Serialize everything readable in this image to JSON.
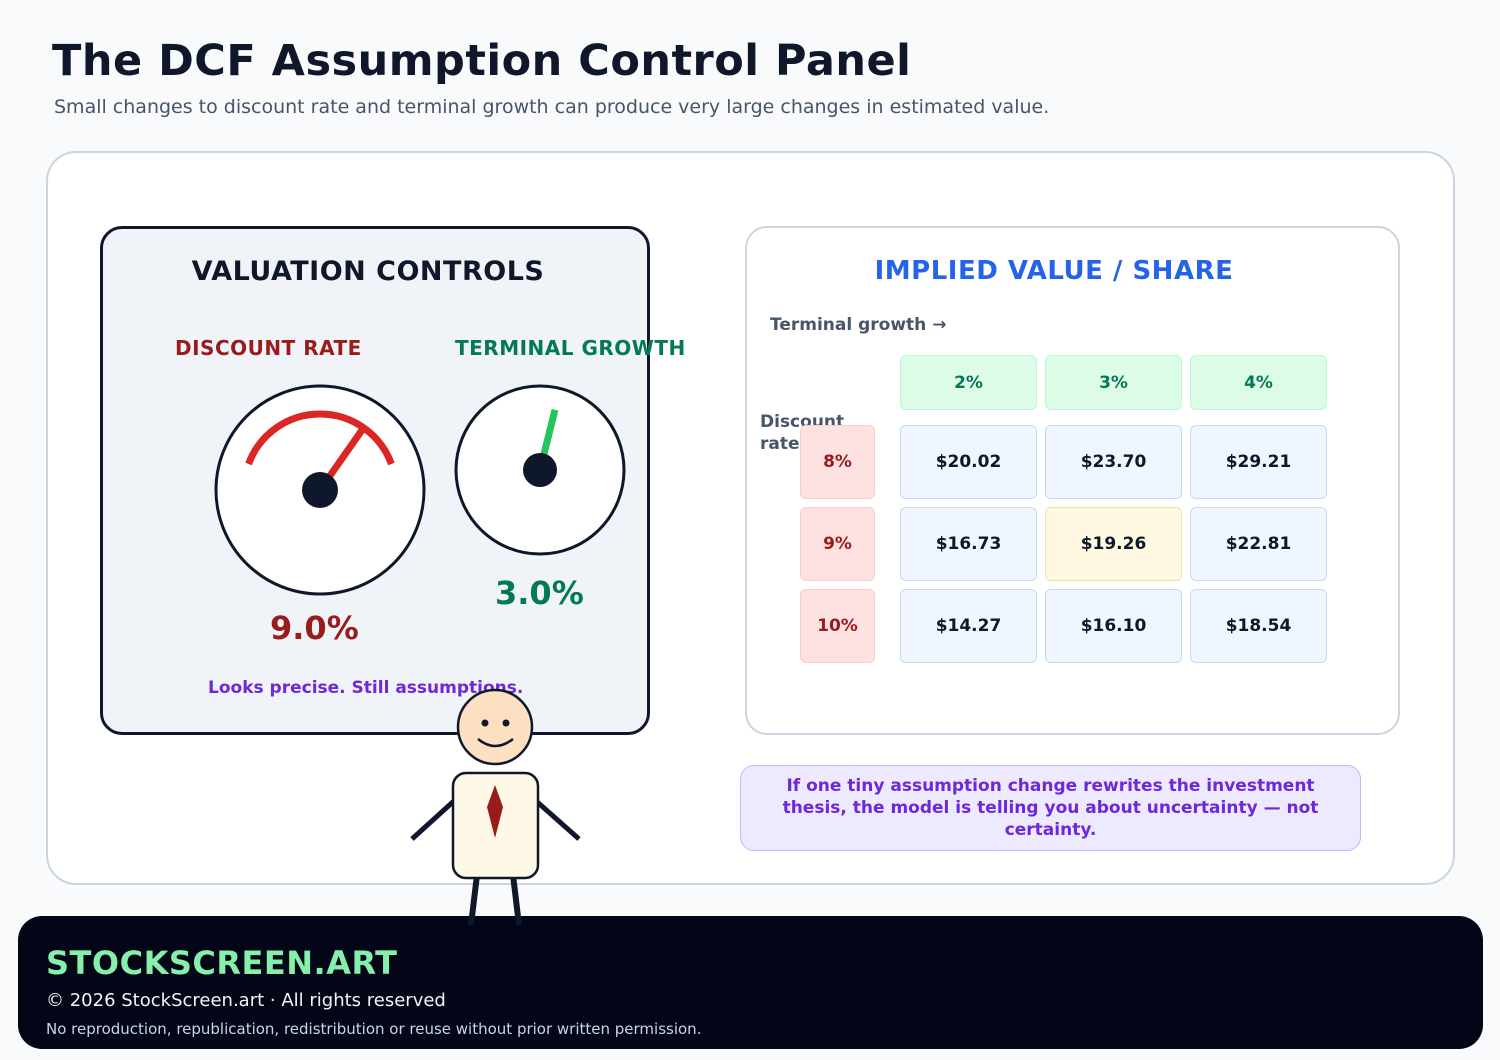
{
  "header": {
    "title": "The DCF Assumption Control Panel",
    "subtitle": "Small changes to discount rate and terminal growth can produce very large changes in estimated value."
  },
  "controls": {
    "title": "VALUATION CONTROLS",
    "discount_rate": {
      "label": "DISCOUNT RATE",
      "value": "9.0%",
      "level": 0.75
    },
    "terminal_growth": {
      "label": "TERMINAL GROWTH",
      "value": "3.0%",
      "level": 0.6
    },
    "caption": "Looks precise. Still assumptions."
  },
  "table": {
    "title": "IMPLIED VALUE / SHARE",
    "col_axis_label": "Terminal growth →",
    "row_axis_label": "Discount rate",
    "columns": [
      "2%",
      "3%",
      "4%"
    ],
    "rows": [
      {
        "label": "8%",
        "values": [
          "$20.02",
          "$23.70",
          "$29.21"
        ]
      },
      {
        "label": "9%",
        "values": [
          "$16.73",
          "$19.26",
          "$22.81"
        ]
      },
      {
        "label": "10%",
        "values": [
          "$14.27",
          "$16.10",
          "$18.54"
        ]
      }
    ],
    "highlight": {
      "row": 1,
      "col": 1
    }
  },
  "note": "If one tiny assumption change rewrites the investment thesis, the model is telling you about uncertainty — not certainty.",
  "footer": {
    "brand": "STOCKSCREEN.ART",
    "copyright": "© 2026 StockScreen.art · All rights reserved",
    "rights": "No reproduction, republication, redistribution or reuse without prior written permission."
  },
  "colors": {
    "discount": "#dc2626",
    "growth": "#22c55e",
    "accent_blue": "#2563eb",
    "note_purple": "#6d28d9",
    "brand_green": "#86efac"
  }
}
